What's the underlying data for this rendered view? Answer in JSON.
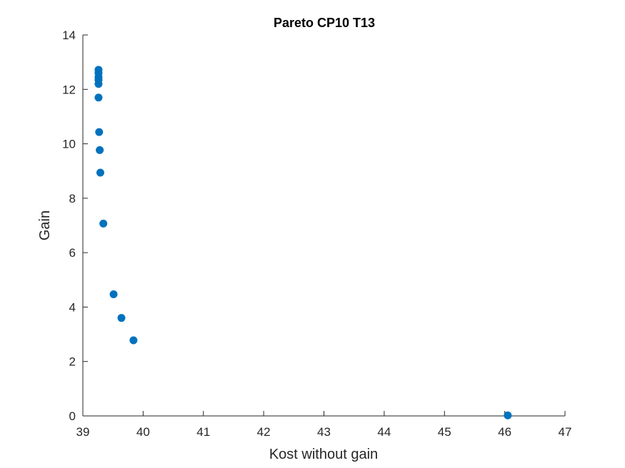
{
  "chart_data": {
    "type": "scatter",
    "title": "Pareto CP10 T13",
    "xlabel": "Kost without gain",
    "ylabel": "Gain",
    "xlim": [
      39,
      47
    ],
    "ylim": [
      0,
      14
    ],
    "xticks": [
      39,
      40,
      41,
      42,
      43,
      44,
      45,
      46,
      47
    ],
    "yticks": [
      0,
      2,
      4,
      6,
      8,
      10,
      12,
      14
    ],
    "grid": false,
    "marker_color": "#0072BD",
    "points": [
      {
        "x": 39.26,
        "y": 12.72
      },
      {
        "x": 39.26,
        "y": 12.6
      },
      {
        "x": 39.26,
        "y": 12.45
      },
      {
        "x": 39.26,
        "y": 12.35
      },
      {
        "x": 39.26,
        "y": 12.2
      },
      {
        "x": 39.26,
        "y": 11.7
      },
      {
        "x": 39.27,
        "y": 10.43
      },
      {
        "x": 39.28,
        "y": 9.77
      },
      {
        "x": 39.29,
        "y": 8.94
      },
      {
        "x": 39.34,
        "y": 7.07
      },
      {
        "x": 39.51,
        "y": 4.47
      },
      {
        "x": 39.64,
        "y": 3.6
      },
      {
        "x": 39.84,
        "y": 2.78
      },
      {
        "x": 46.05,
        "y": 0.02
      }
    ]
  }
}
